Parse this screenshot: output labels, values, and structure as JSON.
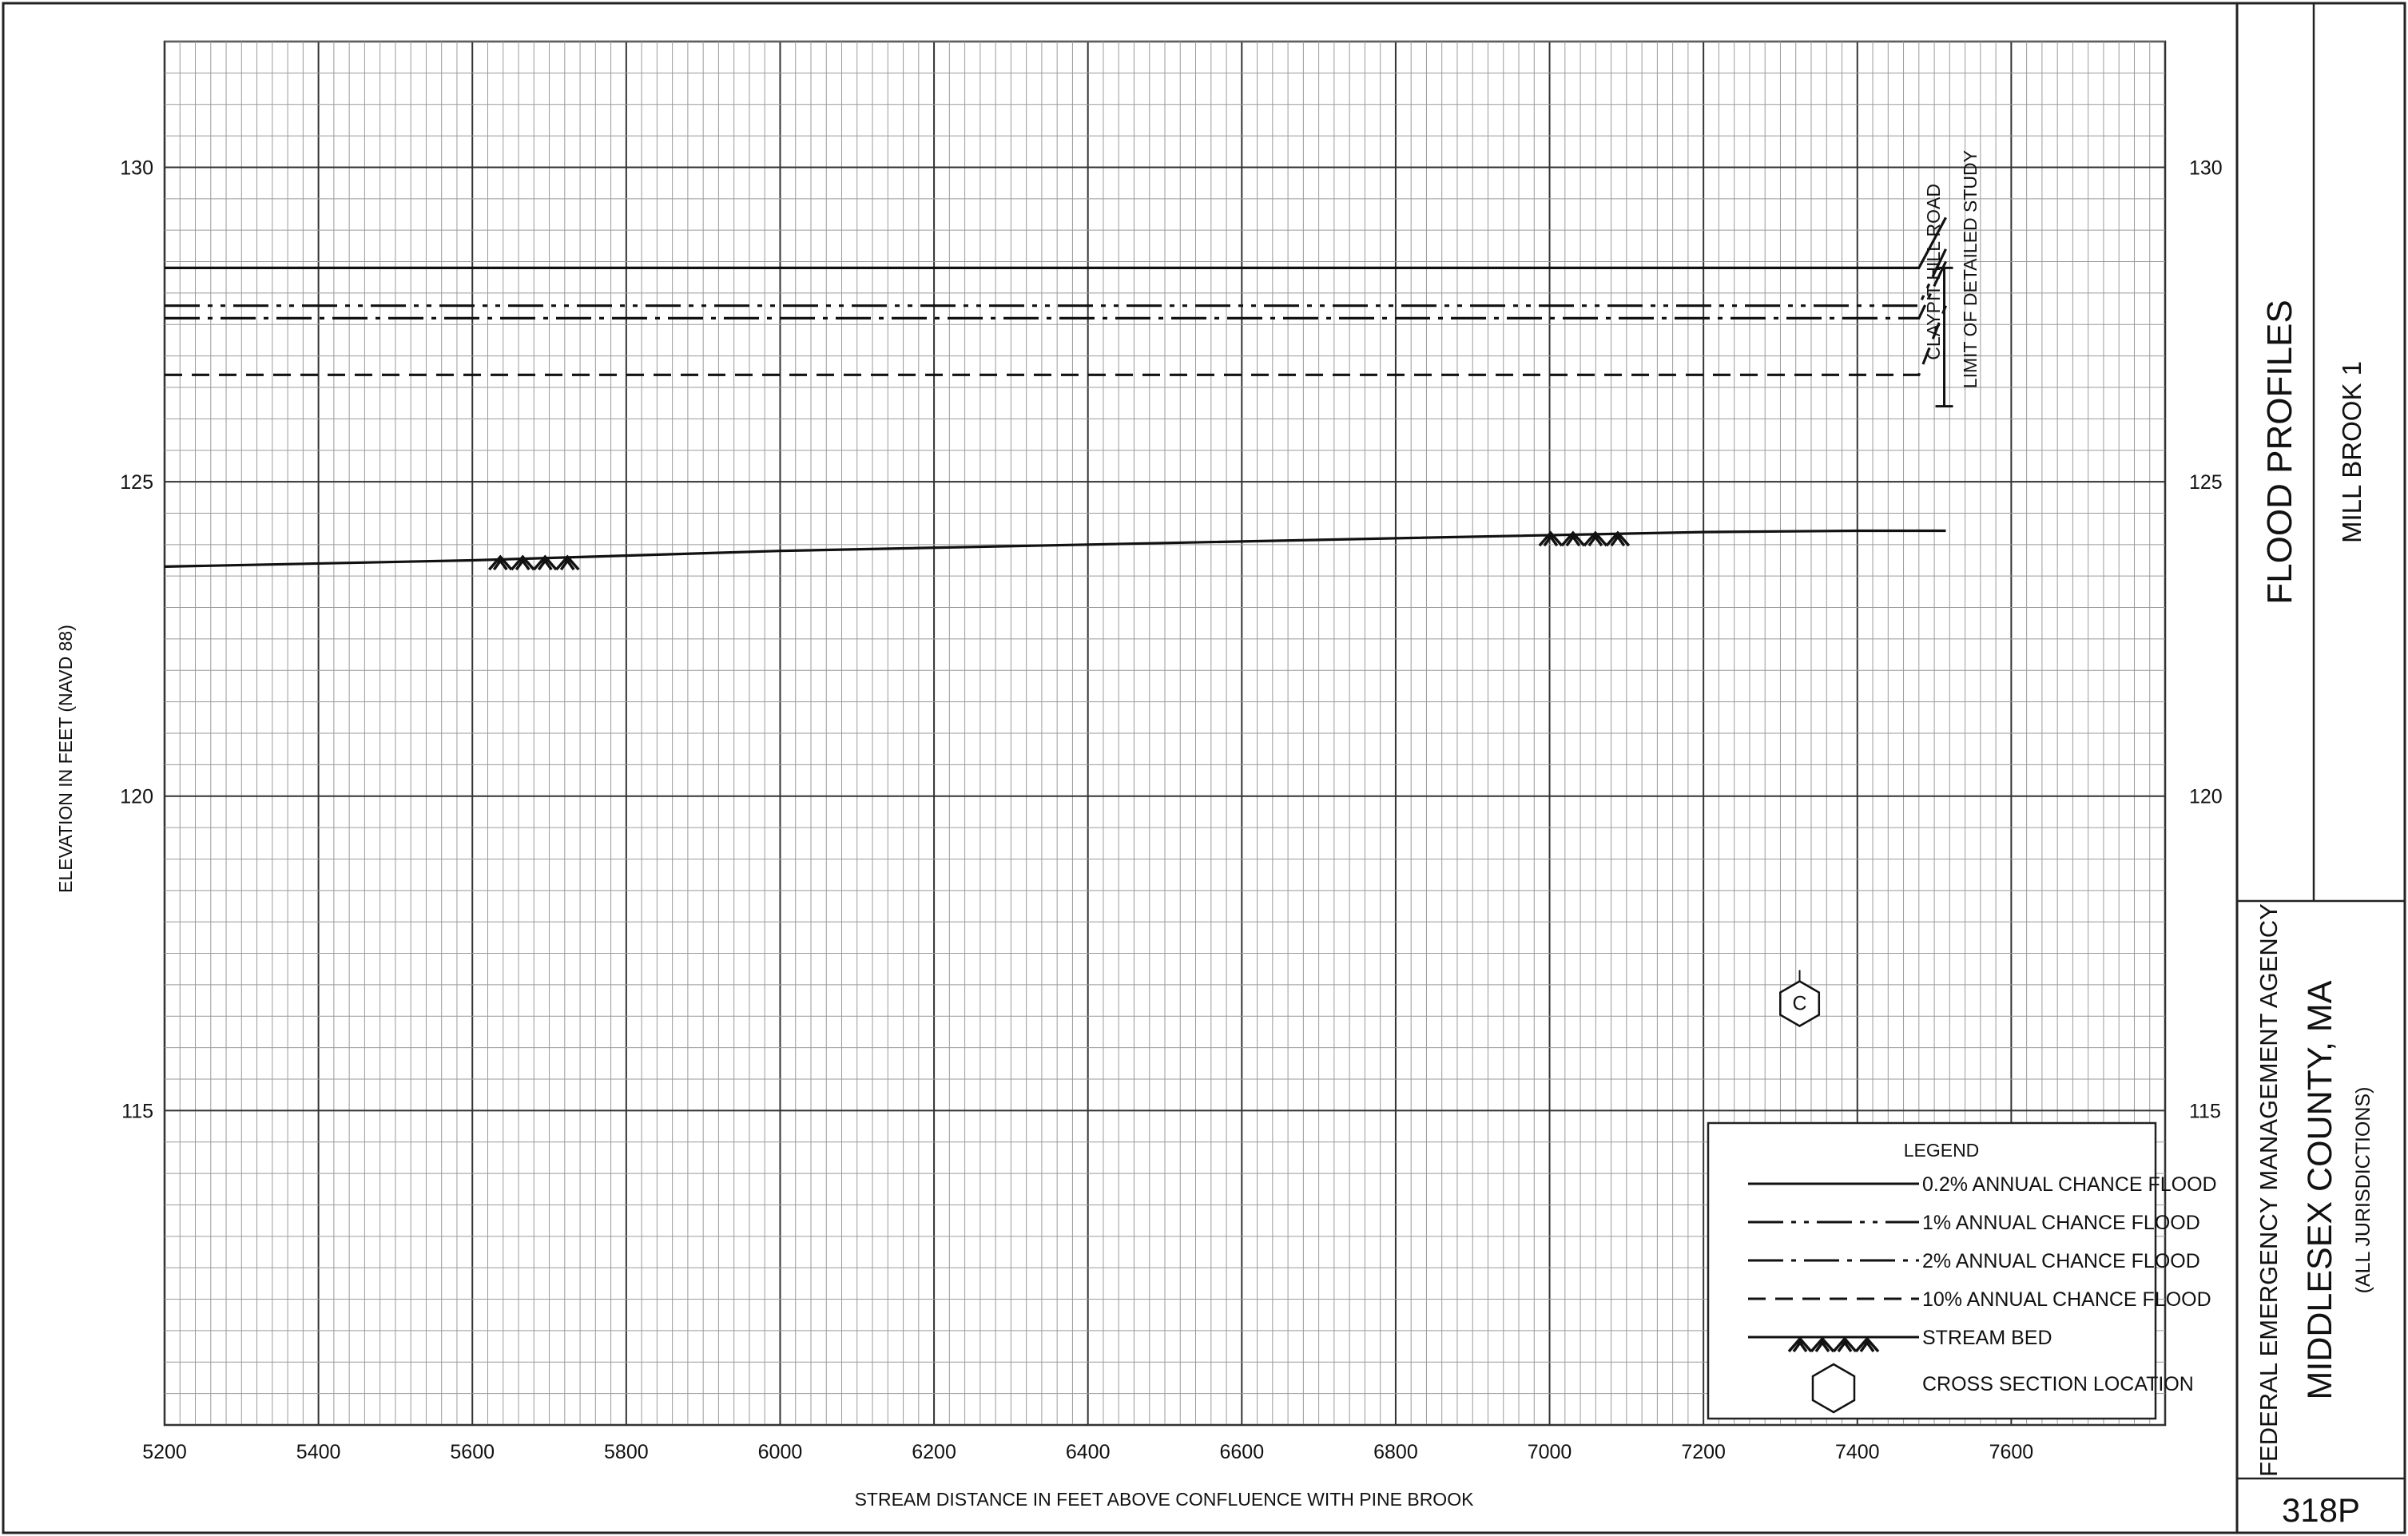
{
  "chart_data": {
    "type": "line",
    "xlabel": "STREAM DISTANCE IN FEET ABOVE CONFLUENCE WITH PINE BROOK",
    "ylabel": "ELEVATION IN FEET (NAVD 88)",
    "xlim": [
      5200,
      7800
    ],
    "ylim": [
      110,
      132
    ],
    "x_ticks": [
      5200,
      5400,
      5600,
      5800,
      6000,
      6200,
      6400,
      6600,
      6800,
      7000,
      7200,
      7400,
      7600
    ],
    "y_ticks": [
      115,
      120,
      125,
      130
    ],
    "grid": "on",
    "series": [
      {
        "name": "0.2% ANNUAL CHANCE FLOOD",
        "style": "solid",
        "x": [
          5200,
          7480,
          7515
        ],
        "y": [
          128.4,
          128.4,
          129.2
        ]
      },
      {
        "name": "1% ANNUAL CHANCE FLOOD",
        "style": "dash-dot-dot",
        "x": [
          5200,
          7480,
          7515
        ],
        "y": [
          127.8,
          127.8,
          128.7
        ]
      },
      {
        "name": "2% ANNUAL CHANCE FLOOD",
        "style": "dash-dot",
        "x": [
          5200,
          7480,
          7515
        ],
        "y": [
          127.6,
          127.6,
          128.5
        ]
      },
      {
        "name": "10% ANNUAL CHANCE FLOOD",
        "style": "dashed",
        "x": [
          5200,
          7480,
          7515
        ],
        "y": [
          126.7,
          126.7,
          127.8
        ]
      },
      {
        "name": "STREAM BED",
        "style": "solid",
        "x": [
          5200,
          5600,
          6000,
          6400,
          6800,
          7200,
          7400,
          7515
        ],
        "y": [
          123.65,
          123.75,
          123.9,
          124.0,
          124.1,
          124.2,
          124.22,
          124.22
        ]
      }
    ],
    "stream_bed_marks": [
      5680,
      7045
    ],
    "cross_sections": [
      {
        "label": "C",
        "x": 7325,
        "y": 116.7
      }
    ],
    "structures": [
      {
        "label": "CLAYPIT HILL ROAD",
        "label2": "LIMIT OF DETAILED STUDY",
        "x": 7515,
        "top": 128.4,
        "bottom": 126.2
      }
    ],
    "legend": {
      "title": "LEGEND",
      "placement": "bottom-right",
      "entries": [
        "0.2% ANNUAL CHANCE FLOOD",
        "1% ANNUAL CHANCE FLOOD",
        "2% ANNUAL CHANCE FLOOD",
        "10% ANNUAL CHANCE FLOOD",
        "STREAM BED",
        "CROSS SECTION LOCATION"
      ]
    }
  },
  "title_block": {
    "title": "FLOOD PROFILES",
    "stream": "MILL BROOK 1",
    "agency": "FEDERAL EMERGENCY MANAGEMENT AGENCY",
    "county": "MIDDLESEX COUNTY, MA",
    "jurisdictions": "(ALL JURISDICTIONS)",
    "panel": "318P"
  }
}
